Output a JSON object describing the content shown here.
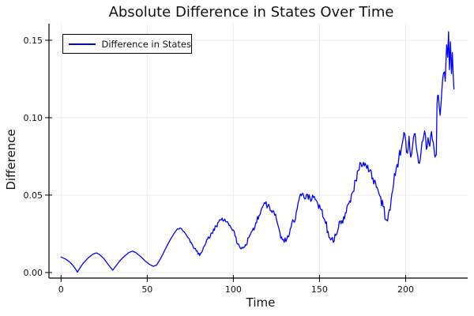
{
  "chart_data": {
    "type": "line",
    "title": "Absolute Difference in States Over Time",
    "xlabel": "Time",
    "ylabel": "Difference",
    "xlim": [
      -7,
      236
    ],
    "ylim": [
      -0.0036,
      0.1607
    ],
    "xticks": [
      0,
      50,
      100,
      150,
      200
    ],
    "xtick_labels": [
      "0",
      "50",
      "100",
      "150",
      "200"
    ],
    "yticks": [
      0,
      0.05,
      0.1,
      0.15
    ],
    "ytick_labels": [
      "0.00",
      "0.05",
      "0.10",
      "0.15"
    ],
    "grid": true,
    "legend_position": "top-left",
    "colors": {
      "line": "#0000ff",
      "grid": "#ebebeb",
      "spine": "#000000",
      "text": "#111111",
      "background": "#ffffff"
    },
    "series": [
      {
        "name": "Difference in States",
        "color": "#0000ff",
        "noise_seed": 1337,
        "noise_dt": 0.5,
        "noise_envelope": [
          [
            0,
            0
          ],
          [
            67,
            0
          ],
          [
            71,
            0.0012
          ],
          [
            80,
            0.0015
          ],
          [
            95,
            0.0018
          ],
          [
            105,
            0.0022
          ],
          [
            120,
            0.0025
          ],
          [
            135,
            0.0028
          ],
          [
            150,
            0.0032
          ],
          [
            160,
            0.0035
          ],
          [
            175,
            0.003
          ],
          [
            190,
            0.0035
          ],
          [
            200,
            0.004
          ],
          [
            215,
            0.004
          ],
          [
            228,
            0.003
          ]
        ],
        "points": [
          [
            0,
            0.01
          ],
          [
            3,
            0.0085
          ],
          [
            6,
            0.0058
          ],
          [
            8,
            0.003
          ],
          [
            9.5,
            0.0003
          ],
          [
            11,
            0.003
          ],
          [
            13,
            0.0062
          ],
          [
            16,
            0.0097
          ],
          [
            18.5,
            0.0118
          ],
          [
            20.5,
            0.0127
          ],
          [
            22.5,
            0.0115
          ],
          [
            25,
            0.0088
          ],
          [
            27.5,
            0.005
          ],
          [
            30,
            0.0015
          ],
          [
            32,
            0.0045
          ],
          [
            34.5,
            0.008
          ],
          [
            37,
            0.0108
          ],
          [
            39.5,
            0.013
          ],
          [
            41.5,
            0.0138
          ],
          [
            43.5,
            0.0128
          ],
          [
            46,
            0.0105
          ],
          [
            48.5,
            0.0078
          ],
          [
            51,
            0.0055
          ],
          [
            53.5,
            0.004
          ],
          [
            55.5,
            0.0048
          ],
          [
            58,
            0.0095
          ],
          [
            60.5,
            0.015
          ],
          [
            63,
            0.0205
          ],
          [
            65.5,
            0.025
          ],
          [
            67.5,
            0.0282
          ],
          [
            69.5,
            0.0285
          ],
          [
            71.5,
            0.0262
          ],
          [
            73.5,
            0.0228
          ],
          [
            75.5,
            0.0195
          ],
          [
            77.5,
            0.0155
          ],
          [
            79.5,
            0.0118
          ],
          [
            81,
            0.0125
          ],
          [
            83,
            0.017
          ],
          [
            85,
            0.0215
          ],
          [
            87.5,
            0.0255
          ],
          [
            90,
            0.03
          ],
          [
            92,
            0.034
          ],
          [
            93.5,
            0.0352
          ],
          [
            95,
            0.0345
          ],
          [
            97,
            0.032
          ],
          [
            99,
            0.0285
          ],
          [
            101,
            0.0235
          ],
          [
            103,
            0.0185
          ],
          [
            105,
            0.0163
          ],
          [
            107,
            0.018
          ],
          [
            109,
            0.0225
          ],
          [
            111,
            0.027
          ],
          [
            113,
            0.032
          ],
          [
            115,
            0.037
          ],
          [
            117,
            0.0425
          ],
          [
            118.5,
            0.0445
          ],
          [
            120,
            0.043
          ],
          [
            122,
            0.04
          ],
          [
            124,
            0.037
          ],
          [
            126,
            0.03
          ],
          [
            128,
            0.023
          ],
          [
            129.5,
            0.0195
          ],
          [
            131,
            0.0215
          ],
          [
            133,
            0.028
          ],
          [
            135,
            0.033
          ],
          [
            137,
            0.041
          ],
          [
            138.5,
            0.049
          ],
          [
            140,
            0.051
          ],
          [
            141.5,
            0.0475
          ],
          [
            143,
            0.0505
          ],
          [
            144.5,
            0.048
          ],
          [
            146,
            0.05
          ],
          [
            147.5,
            0.047
          ],
          [
            149,
            0.0445
          ],
          [
            151,
            0.0405
          ],
          [
            153,
            0.034
          ],
          [
            155,
            0.0265
          ],
          [
            156.5,
            0.021
          ],
          [
            158,
            0.0195
          ],
          [
            159.5,
            0.024
          ],
          [
            161,
            0.029
          ],
          [
            163,
            0.0335
          ],
          [
            165,
            0.0385
          ],
          [
            167,
            0.0445
          ],
          [
            169,
            0.0515
          ],
          [
            171,
            0.0595
          ],
          [
            172.5,
            0.066
          ],
          [
            174,
            0.0705
          ],
          [
            175.5,
            0.0712
          ],
          [
            177,
            0.069
          ],
          [
            179,
            0.0655
          ],
          [
            181,
            0.061
          ],
          [
            183,
            0.055
          ],
          [
            185,
            0.0495
          ],
          [
            187,
            0.0425
          ],
          [
            188.5,
            0.034
          ],
          [
            190,
            0.038
          ],
          [
            191.5,
            0.046
          ],
          [
            193,
            0.057
          ],
          [
            194.5,
            0.067
          ],
          [
            196,
            0.074
          ],
          [
            197.5,
            0.08
          ],
          [
            199,
            0.0905
          ],
          [
            200,
            0.0855
          ],
          [
            201,
            0.077
          ],
          [
            202,
            0.088
          ],
          [
            203,
            0.0745
          ],
          [
            204,
            0.0815
          ],
          [
            205,
            0.0895
          ],
          [
            206,
            0.0825
          ],
          [
            207,
            0.0755
          ],
          [
            208,
            0.0705
          ],
          [
            209,
            0.0785
          ],
          [
            210,
            0.085
          ],
          [
            211,
            0.0915
          ],
          [
            212,
            0.0795
          ],
          [
            213,
            0.087
          ],
          [
            214,
            0.0815
          ],
          [
            215,
            0.091
          ],
          [
            216,
            0.084
          ],
          [
            217,
            0.0745
          ],
          [
            217.8,
            0.076
          ],
          [
            218.2,
            0.109
          ],
          [
            219,
            0.1145
          ],
          [
            220,
            0.1015
          ],
          [
            221,
            0.1175
          ],
          [
            222,
            0.129
          ],
          [
            223,
            0.1235
          ],
          [
            223.8,
            0.147
          ],
          [
            224.4,
            0.139
          ],
          [
            224.9,
            0.1555
          ],
          [
            225.4,
            0.131
          ],
          [
            226,
            0.149
          ],
          [
            226.6,
            0.1285
          ],
          [
            227.1,
            0.142
          ],
          [
            227.6,
            0.127
          ],
          [
            228,
            0.1185
          ]
        ]
      }
    ]
  }
}
